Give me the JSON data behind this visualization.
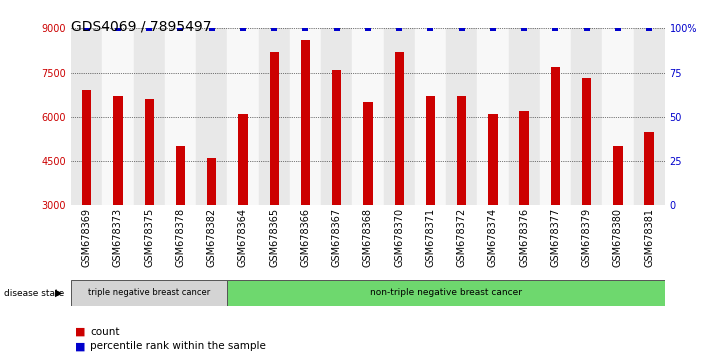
{
  "title": "GDS4069 / 7895497",
  "samples": [
    "GSM678369",
    "GSM678373",
    "GSM678375",
    "GSM678378",
    "GSM678382",
    "GSM678364",
    "GSM678365",
    "GSM678366",
    "GSM678367",
    "GSM678368",
    "GSM678370",
    "GSM678371",
    "GSM678372",
    "GSM678374",
    "GSM678376",
    "GSM678377",
    "GSM678379",
    "GSM678380",
    "GSM678381"
  ],
  "bar_values": [
    6900,
    6700,
    6600,
    5000,
    4600,
    6100,
    8200,
    8600,
    7600,
    6500,
    8200,
    6700,
    6700,
    6100,
    6200,
    7700,
    7300,
    5000,
    5500
  ],
  "percentile_values": [
    100,
    100,
    100,
    100,
    100,
    100,
    100,
    100,
    100,
    100,
    100,
    100,
    100,
    100,
    100,
    100,
    100,
    100,
    100
  ],
  "bar_color": "#cc0000",
  "percentile_color": "#0000cc",
  "ylim_left": [
    3000,
    9000
  ],
  "ylim_right": [
    0,
    100
  ],
  "yticks_left": [
    3000,
    4500,
    6000,
    7500,
    9000
  ],
  "yticks_right": [
    0,
    25,
    50,
    75,
    100
  ],
  "ytick_labels_left": [
    "3000",
    "4500",
    "6000",
    "7500",
    "9000"
  ],
  "ytick_labels_right": [
    "0",
    "25",
    "50",
    "75",
    "100%"
  ],
  "group1_label": "triple negative breast cancer",
  "group2_label": "non-triple negative breast cancer",
  "group1_count": 5,
  "group2_count": 14,
  "disease_state_label": "disease state",
  "legend_count_label": "count",
  "legend_percentile_label": "percentile rank within the sample",
  "bg_color": "#ffffff",
  "col_bg_even": "#e8e8e8",
  "col_bg_odd": "#f8f8f8",
  "grid_color": "#000000",
  "title_fontsize": 10,
  "tick_fontsize": 7,
  "legend_fontsize": 7.5
}
